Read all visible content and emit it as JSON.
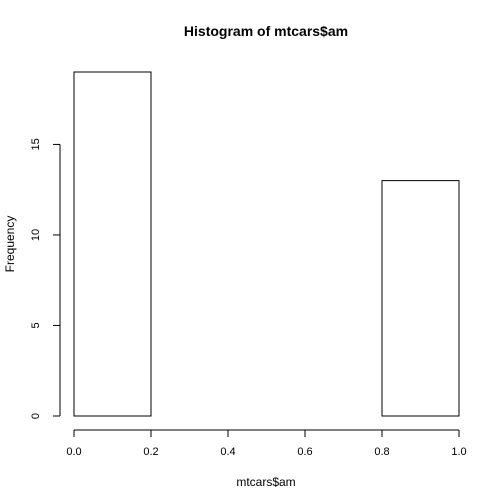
{
  "chart_data": {
    "type": "bar",
    "histogram": true,
    "title": "Histogram of mtcars$am",
    "xlabel": "mtcars$am",
    "ylabel": "Frequency",
    "xlim": [
      0,
      1
    ],
    "ylim": [
      0,
      19
    ],
    "bins": [
      {
        "x0": 0.0,
        "x1": 0.2,
        "count": 19
      },
      {
        "x0": 0.2,
        "x1": 0.4,
        "count": 0
      },
      {
        "x0": 0.4,
        "x1": 0.6,
        "count": 0
      },
      {
        "x0": 0.6,
        "x1": 0.8,
        "count": 0
      },
      {
        "x0": 0.8,
        "x1": 1.0,
        "count": 13
      }
    ],
    "x_ticks": [
      0.0,
      0.2,
      0.4,
      0.6,
      0.8,
      1.0
    ],
    "x_tick_labels": [
      "0.0",
      "0.2",
      "0.4",
      "0.6",
      "0.8",
      "1.0"
    ],
    "y_ticks": [
      0,
      5,
      10,
      15
    ],
    "y_tick_labels": [
      "0",
      "5",
      "10",
      "15"
    ],
    "grid": false,
    "colors": {
      "bar_fill": "#ffffff",
      "bar_stroke": "#000000"
    }
  }
}
